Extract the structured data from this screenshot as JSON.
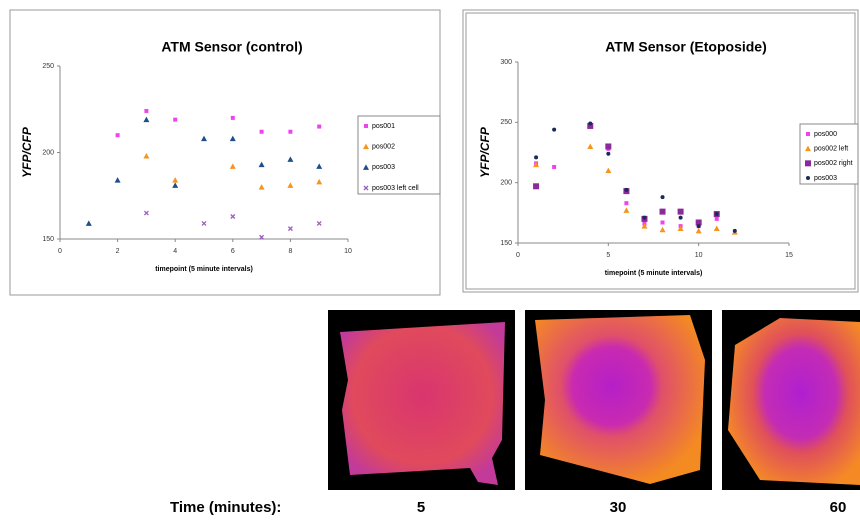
{
  "chart_data": [
    {
      "type": "scatter",
      "title": "ATM Sensor (control)",
      "x_label": "timepoint (5 minute intervals)",
      "y_label": "YFP/CFP",
      "xlim": [
        0,
        10
      ],
      "xticks": [
        0,
        2,
        4,
        6,
        8,
        10
      ],
      "ylim": [
        150,
        250
      ],
      "yticks": [
        150,
        200,
        250
      ],
      "legend": "right",
      "series": [
        {
          "name": "pos001",
          "color": "#ee44ee",
          "marker": "square",
          "x": [
            2,
            3,
            4,
            6,
            7,
            8,
            9
          ],
          "values": [
            210,
            224,
            219,
            220,
            212,
            212,
            215
          ]
        },
        {
          "name": "pos002",
          "color": "#f7941d",
          "marker": "triangle",
          "x": [
            3,
            4,
            6,
            7,
            8,
            9
          ],
          "values": [
            198,
            184,
            192,
            180,
            181,
            183
          ]
        },
        {
          "name": "pos003",
          "color": "#1f4e8c",
          "marker": "triangle",
          "x": [
            1,
            2,
            3,
            4,
            5,
            6,
            7,
            8,
            9
          ],
          "values": [
            159,
            184,
            219,
            181,
            208,
            208,
            193,
            196,
            192
          ]
        },
        {
          "name": "pos003 left cell",
          "color": "#9b5fc0",
          "marker": "x",
          "x": [
            3,
            5,
            6,
            7,
            8,
            9
          ],
          "values": [
            165,
            159,
            163,
            151,
            156,
            159
          ]
        }
      ]
    },
    {
      "type": "scatter",
      "title": "ATM Sensor (Etoposide)",
      "x_label": "timepoint (5 minute intervals)",
      "y_label": "YFP/CFP",
      "xlim": [
        0,
        15
      ],
      "xticks": [
        0,
        5,
        10,
        15
      ],
      "ylim": [
        150,
        300
      ],
      "yticks": [
        150,
        200,
        250,
        300
      ],
      "legend": "right",
      "series": [
        {
          "name": "pos000",
          "color": "#ee44ee",
          "marker": "square",
          "x": [
            1,
            2,
            4,
            5,
            6,
            7,
            8,
            9,
            10,
            11
          ],
          "values": [
            216,
            213,
            247,
            228,
            183,
            166,
            167,
            164,
            164,
            170
          ]
        },
        {
          "name": "pos002 left",
          "color": "#f7941d",
          "marker": "triangle",
          "x": [
            1,
            4,
            5,
            6,
            7,
            8,
            9,
            10,
            11,
            12
          ],
          "values": [
            215,
            230,
            210,
            177,
            164,
            161,
            162,
            160,
            162,
            159
          ]
        },
        {
          "name": "pos002 right",
          "color": "#8b2a9a",
          "marker": "bigsquare",
          "x": [
            1,
            4,
            5,
            6,
            7,
            8,
            9,
            10,
            11
          ],
          "values": [
            197,
            247,
            230,
            193,
            170,
            176,
            176,
            167,
            174
          ]
        },
        {
          "name": "pos003",
          "color": "#1a2a5a",
          "marker": "circle",
          "x": [
            1,
            2,
            4,
            5,
            6,
            7,
            8,
            9,
            10,
            11,
            12
          ],
          "values": [
            221,
            244,
            249,
            224,
            194,
            171,
            188,
            171,
            164,
            174,
            160
          ]
        }
      ]
    }
  ],
  "images": {
    "time_label": "Time (minutes):",
    "times": [
      "5",
      "30",
      "60"
    ]
  }
}
